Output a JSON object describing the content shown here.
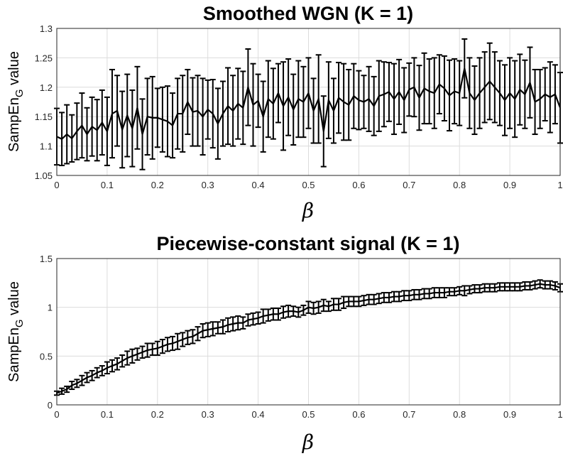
{
  "chart_data": [
    {
      "type": "line",
      "title": "Smoothed WGN (K = 1)",
      "xlabel": "β",
      "ylabel": {
        "main": "SampEn",
        "sub": "G",
        "rest": " value"
      },
      "xlim": [
        0,
        1
      ],
      "ylim": [
        1.05,
        1.3
      ],
      "xticks": [
        0,
        0.1,
        0.2,
        0.3,
        0.4,
        0.5,
        0.6,
        0.7,
        0.8,
        0.9,
        1
      ],
      "xtick_labels": [
        "0",
        "0.1",
        "0.2",
        "0.3",
        "0.4",
        "0.5",
        "0.6",
        "0.7",
        "0.8",
        "0.9",
        "1"
      ],
      "yticks": [
        1.05,
        1.1,
        1.15,
        1.2,
        1.25,
        1.3
      ],
      "ytick_labels": [
        "1.05",
        "1.1",
        "1.15",
        "1.2",
        "1.25",
        "1.3"
      ],
      "grid": true,
      "error_bars": true,
      "x": [
        0,
        0.01,
        0.02,
        0.03,
        0.04,
        0.05,
        0.06,
        0.07,
        0.08,
        0.09,
        0.1,
        0.11,
        0.12,
        0.13,
        0.14,
        0.15,
        0.16,
        0.17,
        0.18,
        0.19,
        0.2,
        0.21,
        0.22,
        0.23,
        0.24,
        0.25,
        0.26,
        0.27,
        0.28,
        0.29,
        0.3,
        0.31,
        0.32,
        0.33,
        0.34,
        0.35,
        0.36,
        0.37,
        0.38,
        0.39,
        0.4,
        0.41,
        0.42,
        0.43,
        0.44,
        0.45,
        0.46,
        0.47,
        0.48,
        0.49,
        0.5,
        0.51,
        0.52,
        0.53,
        0.54,
        0.55,
        0.56,
        0.57,
        0.58,
        0.59,
        0.6,
        0.61,
        0.62,
        0.63,
        0.64,
        0.65,
        0.66,
        0.67,
        0.68,
        0.69,
        0.7,
        0.71,
        0.72,
        0.73,
        0.74,
        0.75,
        0.76,
        0.77,
        0.78,
        0.79,
        0.8,
        0.81,
        0.82,
        0.83,
        0.84,
        0.85,
        0.86,
        0.87,
        0.88,
        0.89,
        0.9,
        0.91,
        0.92,
        0.93,
        0.94,
        0.95,
        0.96,
        0.97,
        0.98,
        0.99,
        1
      ],
      "y": [
        1.116,
        1.112,
        1.12,
        1.113,
        1.125,
        1.135,
        1.12,
        1.133,
        1.127,
        1.14,
        1.125,
        1.155,
        1.16,
        1.128,
        1.152,
        1.13,
        1.165,
        1.12,
        1.15,
        1.148,
        1.148,
        1.145,
        1.142,
        1.135,
        1.155,
        1.155,
        1.175,
        1.158,
        1.16,
        1.15,
        1.162,
        1.155,
        1.138,
        1.155,
        1.168,
        1.16,
        1.172,
        1.165,
        1.2,
        1.17,
        1.177,
        1.15,
        1.18,
        1.172,
        1.19,
        1.168,
        1.183,
        1.162,
        1.18,
        1.175,
        1.19,
        1.16,
        1.18,
        1.125,
        1.178,
        1.16,
        1.182,
        1.175,
        1.17,
        1.185,
        1.178,
        1.175,
        1.18,
        1.168,
        1.185,
        1.188,
        1.192,
        1.18,
        1.192,
        1.178,
        1.196,
        1.2,
        1.182,
        1.198,
        1.193,
        1.19,
        1.205,
        1.198,
        1.186,
        1.193,
        1.19,
        1.232,
        1.19,
        1.178,
        1.19,
        1.2,
        1.21,
        1.2,
        1.19,
        1.178,
        1.19,
        1.18,
        1.196,
        1.188,
        1.208,
        1.175,
        1.18,
        1.188,
        1.183,
        1.188,
        1.165
      ],
      "err": [
        0.048,
        0.045,
        0.05,
        0.04,
        0.048,
        0.055,
        0.045,
        0.05,
        0.052,
        0.055,
        0.058,
        0.075,
        0.06,
        0.065,
        0.07,
        0.065,
        0.07,
        0.06,
        0.065,
        0.07,
        0.05,
        0.055,
        0.06,
        0.055,
        0.06,
        0.065,
        0.055,
        0.058,
        0.06,
        0.065,
        0.05,
        0.058,
        0.06,
        0.055,
        0.065,
        0.06,
        0.06,
        0.062,
        0.065,
        0.07,
        0.045,
        0.06,
        0.065,
        0.06,
        0.05,
        0.075,
        0.065,
        0.06,
        0.065,
        0.06,
        0.06,
        0.055,
        0.075,
        0.06,
        0.065,
        0.055,
        0.06,
        0.065,
        0.06,
        0.055,
        0.05,
        0.045,
        0.055,
        0.05,
        0.06,
        0.055,
        0.05,
        0.06,
        0.055,
        0.055,
        0.045,
        0.05,
        0.055,
        0.06,
        0.055,
        0.06,
        0.05,
        0.055,
        0.06,
        0.055,
        0.055,
        0.05,
        0.06,
        0.058,
        0.06,
        0.06,
        0.065,
        0.06,
        0.055,
        0.06,
        0.06,
        0.065,
        0.06,
        0.058,
        0.06,
        0.055,
        0.05,
        0.045,
        0.06,
        0.05,
        0.06
      ]
    },
    {
      "type": "line",
      "title": "Piecewise-constant signal (K = 1)",
      "xlabel": "β",
      "ylabel": {
        "main": "SampEn",
        "sub": "G",
        "rest": " value"
      },
      "xlim": [
        0,
        1
      ],
      "ylim": [
        0,
        1.5
      ],
      "xticks": [
        0,
        0.1,
        0.2,
        0.3,
        0.4,
        0.5,
        0.6,
        0.7,
        0.8,
        0.9,
        1
      ],
      "xtick_labels": [
        "0",
        "0.1",
        "0.2",
        "0.3",
        "0.4",
        "0.5",
        "0.6",
        "0.7",
        "0.8",
        "0.9",
        "1"
      ],
      "yticks": [
        0,
        0.5,
        1,
        1.5
      ],
      "ytick_labels": [
        "0",
        "0.5",
        "1",
        "1.5"
      ],
      "grid": true,
      "error_bars": true,
      "x": [
        0,
        0.01,
        0.02,
        0.03,
        0.04,
        0.05,
        0.06,
        0.07,
        0.08,
        0.09,
        0.1,
        0.11,
        0.12,
        0.13,
        0.14,
        0.15,
        0.16,
        0.17,
        0.18,
        0.19,
        0.2,
        0.21,
        0.22,
        0.23,
        0.24,
        0.25,
        0.26,
        0.27,
        0.28,
        0.29,
        0.3,
        0.31,
        0.32,
        0.33,
        0.34,
        0.35,
        0.36,
        0.37,
        0.38,
        0.39,
        0.4,
        0.41,
        0.42,
        0.43,
        0.44,
        0.45,
        0.46,
        0.47,
        0.48,
        0.49,
        0.5,
        0.51,
        0.52,
        0.53,
        0.54,
        0.55,
        0.56,
        0.57,
        0.58,
        0.59,
        0.6,
        0.61,
        0.62,
        0.63,
        0.64,
        0.65,
        0.66,
        0.67,
        0.68,
        0.69,
        0.7,
        0.71,
        0.72,
        0.73,
        0.74,
        0.75,
        0.76,
        0.77,
        0.78,
        0.79,
        0.8,
        0.81,
        0.82,
        0.83,
        0.84,
        0.85,
        0.86,
        0.87,
        0.88,
        0.89,
        0.9,
        0.91,
        0.92,
        0.93,
        0.94,
        0.95,
        0.96,
        0.97,
        0.98,
        0.99,
        1
      ],
      "y": [
        0.12,
        0.14,
        0.16,
        0.2,
        0.22,
        0.25,
        0.28,
        0.3,
        0.33,
        0.35,
        0.38,
        0.4,
        0.42,
        0.45,
        0.48,
        0.5,
        0.52,
        0.54,
        0.56,
        0.57,
        0.58,
        0.6,
        0.62,
        0.63,
        0.65,
        0.67,
        0.69,
        0.7,
        0.73,
        0.76,
        0.77,
        0.78,
        0.79,
        0.8,
        0.82,
        0.83,
        0.84,
        0.84,
        0.87,
        0.88,
        0.89,
        0.91,
        0.92,
        0.93,
        0.93,
        0.95,
        0.96,
        0.96,
        0.95,
        0.97,
        1.0,
        0.99,
        1.0,
        1.02,
        1.01,
        1.03,
        1.03,
        1.05,
        1.06,
        1.06,
        1.06,
        1.07,
        1.08,
        1.08,
        1.09,
        1.1,
        1.1,
        1.11,
        1.11,
        1.12,
        1.12,
        1.13,
        1.13,
        1.14,
        1.14,
        1.15,
        1.15,
        1.15,
        1.16,
        1.16,
        1.17,
        1.17,
        1.18,
        1.19,
        1.19,
        1.2,
        1.2,
        1.2,
        1.21,
        1.21,
        1.21,
        1.21,
        1.21,
        1.22,
        1.22,
        1.23,
        1.24,
        1.23,
        1.23,
        1.22,
        1.2
      ],
      "err": [
        0.02,
        0.03,
        0.03,
        0.04,
        0.04,
        0.05,
        0.05,
        0.05,
        0.05,
        0.05,
        0.06,
        0.06,
        0.06,
        0.06,
        0.07,
        0.07,
        0.06,
        0.06,
        0.07,
        0.06,
        0.07,
        0.07,
        0.07,
        0.07,
        0.08,
        0.07,
        0.07,
        0.07,
        0.07,
        0.07,
        0.07,
        0.07,
        0.06,
        0.07,
        0.07,
        0.07,
        0.07,
        0.06,
        0.06,
        0.06,
        0.06,
        0.07,
        0.06,
        0.06,
        0.06,
        0.06,
        0.06,
        0.05,
        0.05,
        0.05,
        0.06,
        0.06,
        0.06,
        0.06,
        0.05,
        0.06,
        0.06,
        0.06,
        0.05,
        0.05,
        0.05,
        0.05,
        0.05,
        0.05,
        0.05,
        0.05,
        0.05,
        0.05,
        0.05,
        0.05,
        0.05,
        0.05,
        0.05,
        0.05,
        0.05,
        0.05,
        0.05,
        0.05,
        0.04,
        0.04,
        0.04,
        0.05,
        0.04,
        0.04,
        0.04,
        0.04,
        0.04,
        0.04,
        0.04,
        0.04,
        0.04,
        0.04,
        0.04,
        0.04,
        0.04,
        0.04,
        0.04,
        0.04,
        0.04,
        0.04,
        0.04
      ]
    }
  ]
}
